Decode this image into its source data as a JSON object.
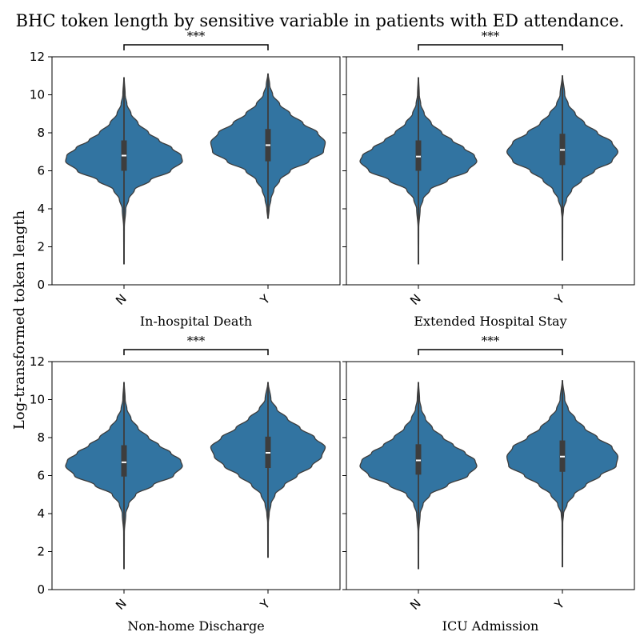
{
  "chart_data": {
    "type": "violin",
    "title": "BHC token length by sensitive variable in patients with ED attendance.",
    "ylabel": "Log-transformed token length",
    "ylim": [
      0,
      12
    ],
    "yticks": [
      0,
      2,
      4,
      6,
      8,
      10,
      12
    ],
    "categories": [
      "N",
      "Y"
    ],
    "color": "#3274a1",
    "edge_color": "#3d3d3d",
    "panels": [
      {
        "xlabel": "In-hospital Death",
        "significance": "***",
        "groups": [
          {
            "category": "N",
            "min": 1.1,
            "max": 10.9,
            "q1": 6.0,
            "median": 6.8,
            "q3": 7.6,
            "profile": [
              [
                1.1,
                0.004
              ],
              [
                3.0,
                0.006
              ],
              [
                4.0,
                0.03
              ],
              [
                4.5,
                0.08
              ],
              [
                5.0,
                0.18
              ],
              [
                5.5,
                0.45
              ],
              [
                6.0,
                0.8
              ],
              [
                6.5,
                1.0
              ],
              [
                6.8,
                0.98
              ],
              [
                7.2,
                0.82
              ],
              [
                7.6,
                0.6
              ],
              [
                8.0,
                0.42
              ],
              [
                8.5,
                0.24
              ],
              [
                9.0,
                0.12
              ],
              [
                9.5,
                0.05
              ],
              [
                10.0,
                0.02
              ],
              [
                10.9,
                0.004
              ]
            ]
          },
          {
            "category": "Y",
            "min": 3.5,
            "max": 11.1,
            "q1": 6.5,
            "median": 7.35,
            "q3": 8.2,
            "profile": [
              [
                3.5,
                0.005
              ],
              [
                4.0,
                0.02
              ],
              [
                4.5,
                0.05
              ],
              [
                5.0,
                0.1
              ],
              [
                5.5,
                0.2
              ],
              [
                6.0,
                0.38
              ],
              [
                6.5,
                0.7
              ],
              [
                7.0,
                0.95
              ],
              [
                7.5,
                0.98
              ],
              [
                8.0,
                0.85
              ],
              [
                8.5,
                0.6
              ],
              [
                9.0,
                0.38
              ],
              [
                9.5,
                0.2
              ],
              [
                10.0,
                0.08
              ],
              [
                10.5,
                0.03
              ],
              [
                11.1,
                0.004
              ]
            ]
          }
        ]
      },
      {
        "xlabel": "Extended Hospital Stay",
        "significance": "***",
        "groups": [
          {
            "category": "N",
            "min": 1.1,
            "max": 10.9,
            "q1": 6.0,
            "median": 6.75,
            "q3": 7.6,
            "profile": [
              [
                1.1,
                0.004
              ],
              [
                3.0,
                0.006
              ],
              [
                4.0,
                0.03
              ],
              [
                4.5,
                0.08
              ],
              [
                5.0,
                0.2
              ],
              [
                5.5,
                0.5
              ],
              [
                6.0,
                0.85
              ],
              [
                6.5,
                1.0
              ],
              [
                6.8,
                0.96
              ],
              [
                7.2,
                0.78
              ],
              [
                7.6,
                0.58
              ],
              [
                8.0,
                0.4
              ],
              [
                8.5,
                0.22
              ],
              [
                9.0,
                0.1
              ],
              [
                9.5,
                0.04
              ],
              [
                10.0,
                0.015
              ],
              [
                10.9,
                0.004
              ]
            ]
          },
          {
            "category": "Y",
            "min": 1.3,
            "max": 11.0,
            "q1": 6.3,
            "median": 7.1,
            "q3": 7.95,
            "profile": [
              [
                1.3,
                0.004
              ],
              [
                3.5,
                0.006
              ],
              [
                4.0,
                0.02
              ],
              [
                4.5,
                0.07
              ],
              [
                5.0,
                0.16
              ],
              [
                5.5,
                0.33
              ],
              [
                6.0,
                0.55
              ],
              [
                6.5,
                0.85
              ],
              [
                7.0,
                0.95
              ],
              [
                7.5,
                0.85
              ],
              [
                8.0,
                0.6
              ],
              [
                8.5,
                0.38
              ],
              [
                9.0,
                0.22
              ],
              [
                9.5,
                0.1
              ],
              [
                10.0,
                0.04
              ],
              [
                11.0,
                0.004
              ]
            ]
          }
        ]
      },
      {
        "xlabel": "Non-home Discharge",
        "significance": "***",
        "groups": [
          {
            "category": "N",
            "min": 1.1,
            "max": 10.9,
            "q1": 5.95,
            "median": 6.7,
            "q3": 7.6,
            "profile": [
              [
                1.1,
                0.004
              ],
              [
                3.0,
                0.006
              ],
              [
                4.0,
                0.03
              ],
              [
                4.5,
                0.08
              ],
              [
                5.0,
                0.2
              ],
              [
                5.5,
                0.5
              ],
              [
                6.0,
                0.85
              ],
              [
                6.5,
                1.0
              ],
              [
                6.8,
                0.97
              ],
              [
                7.2,
                0.8
              ],
              [
                7.6,
                0.6
              ],
              [
                8.0,
                0.42
              ],
              [
                8.5,
                0.24
              ],
              [
                9.0,
                0.12
              ],
              [
                9.5,
                0.05
              ],
              [
                10.0,
                0.02
              ],
              [
                10.9,
                0.004
              ]
            ]
          },
          {
            "category": "Y",
            "min": 1.7,
            "max": 10.9,
            "q1": 6.4,
            "median": 7.2,
            "q3": 8.05,
            "profile": [
              [
                1.7,
                0.004
              ],
              [
                3.5,
                0.006
              ],
              [
                4.0,
                0.02
              ],
              [
                4.5,
                0.05
              ],
              [
                5.0,
                0.12
              ],
              [
                5.5,
                0.28
              ],
              [
                6.0,
                0.5
              ],
              [
                6.5,
                0.75
              ],
              [
                7.0,
                0.92
              ],
              [
                7.5,
                0.98
              ],
              [
                8.0,
                0.8
              ],
              [
                8.5,
                0.55
              ],
              [
                9.0,
                0.33
              ],
              [
                9.5,
                0.15
              ],
              [
                10.0,
                0.05
              ],
              [
                10.9,
                0.004
              ]
            ]
          }
        ]
      },
      {
        "xlabel": "ICU Admission",
        "significance": "***",
        "groups": [
          {
            "category": "N",
            "min": 1.1,
            "max": 10.9,
            "q1": 6.05,
            "median": 6.8,
            "q3": 7.65,
            "profile": [
              [
                1.1,
                0.004
              ],
              [
                3.0,
                0.006
              ],
              [
                4.0,
                0.03
              ],
              [
                4.5,
                0.08
              ],
              [
                5.0,
                0.2
              ],
              [
                5.5,
                0.5
              ],
              [
                6.0,
                0.85
              ],
              [
                6.5,
                1.0
              ],
              [
                6.8,
                0.97
              ],
              [
                7.2,
                0.8
              ],
              [
                7.6,
                0.6
              ],
              [
                8.0,
                0.42
              ],
              [
                8.5,
                0.24
              ],
              [
                9.0,
                0.12
              ],
              [
                9.5,
                0.05
              ],
              [
                10.0,
                0.02
              ],
              [
                10.9,
                0.004
              ]
            ]
          },
          {
            "category": "Y",
            "min": 1.2,
            "max": 11.0,
            "q1": 6.2,
            "median": 7.0,
            "q3": 7.85,
            "profile": [
              [
                1.2,
                0.004
              ],
              [
                3.5,
                0.006
              ],
              [
                4.0,
                0.02
              ],
              [
                4.5,
                0.08
              ],
              [
                5.0,
                0.2
              ],
              [
                5.5,
                0.4
              ],
              [
                6.0,
                0.65
              ],
              [
                6.5,
                0.92
              ],
              [
                7.0,
                0.95
              ],
              [
                7.5,
                0.85
              ],
              [
                8.0,
                0.6
              ],
              [
                8.5,
                0.38
              ],
              [
                9.0,
                0.22
              ],
              [
                9.5,
                0.1
              ],
              [
                10.0,
                0.04
              ],
              [
                11.0,
                0.004
              ]
            ]
          }
        ]
      }
    ]
  }
}
